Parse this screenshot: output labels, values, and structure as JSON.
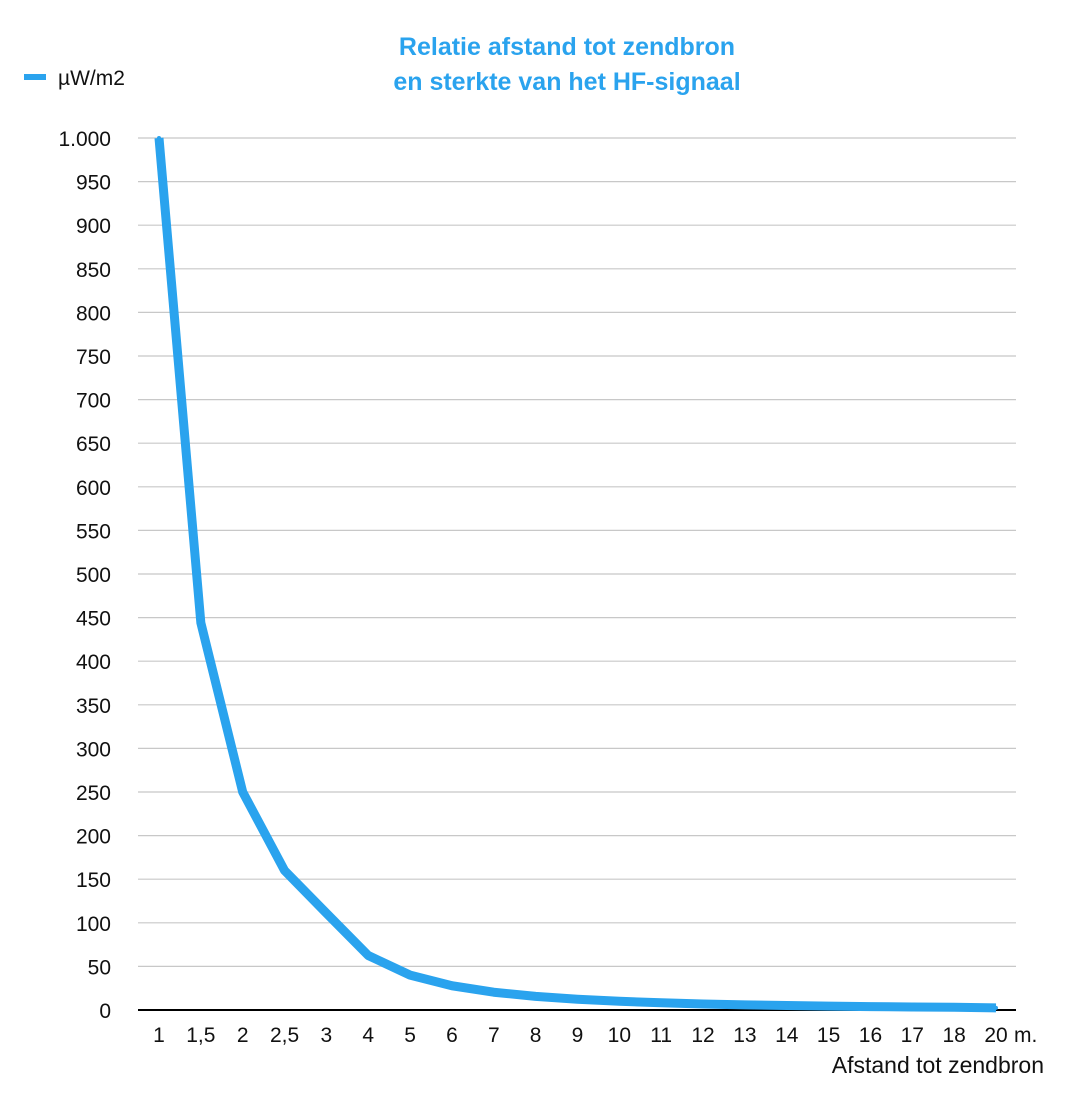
{
  "chart_data": {
    "type": "line",
    "title": [
      "Relatie afstand tot zendbron",
      "en sterkte van het HF-signaal"
    ],
    "xlabel": "Afstand tot zendbron",
    "x_unit": "m.",
    "ylabel": "",
    "ylim": [
      0,
      1000
    ],
    "y_ticks": [
      0,
      50,
      100,
      150,
      200,
      250,
      300,
      350,
      400,
      450,
      500,
      550,
      600,
      650,
      700,
      750,
      800,
      850,
      900,
      950,
      1000
    ],
    "y_tick_labels": [
      "0",
      "50",
      "100",
      "150",
      "200",
      "250",
      "300",
      "350",
      "400",
      "450",
      "500",
      "550",
      "600",
      "650",
      "700",
      "750",
      "800",
      "850",
      "900",
      "950",
      "1.000"
    ],
    "categories": [
      "1",
      "1,5",
      "2",
      "2,5",
      "3",
      "4",
      "5",
      "6",
      "7",
      "8",
      "9",
      "10",
      "11",
      "12",
      "13",
      "14",
      "15",
      "16",
      "17",
      "18",
      "20"
    ],
    "grid": true,
    "legend_position": "top-left",
    "color": "#2aa3ee",
    "series": [
      {
        "name": "µW/m2",
        "values": [
          1000,
          444,
          250,
          160,
          111,
          62.5,
          40,
          27.8,
          20.4,
          15.6,
          12.3,
          10,
          8.3,
          6.9,
          5.9,
          5.1,
          4.4,
          3.9,
          3.5,
          3.1,
          2.5
        ]
      }
    ]
  }
}
